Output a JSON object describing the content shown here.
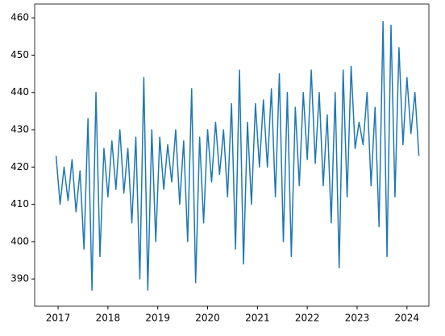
{
  "chart_data": {
    "type": "line",
    "x": [
      2016.96,
      2017.04,
      2017.12,
      2017.2,
      2017.28,
      2017.36,
      2017.44,
      2017.52,
      2017.6,
      2017.68,
      2017.76,
      2017.84,
      2017.92,
      2018.0,
      2018.08,
      2018.16,
      2018.24,
      2018.32,
      2018.4,
      2018.48,
      2018.56,
      2018.64,
      2018.72,
      2018.8,
      2018.88,
      2018.96,
      2019.04,
      2019.12,
      2019.2,
      2019.28,
      2019.36,
      2019.44,
      2019.52,
      2019.6,
      2019.68,
      2019.76,
      2019.84,
      2019.92,
      2020.0,
      2020.08,
      2020.16,
      2020.24,
      2020.32,
      2020.4,
      2020.48,
      2020.56,
      2020.64,
      2020.72,
      2020.8,
      2020.88,
      2020.96,
      2021.04,
      2021.12,
      2021.2,
      2021.28,
      2021.36,
      2021.44,
      2021.52,
      2021.6,
      2021.68,
      2021.76,
      2021.84,
      2021.92,
      2022.0,
      2022.08,
      2022.16,
      2022.24,
      2022.32,
      2022.4,
      2022.48,
      2022.56,
      2022.64,
      2022.72,
      2022.8,
      2022.88,
      2022.96,
      2023.04,
      2023.12,
      2023.2,
      2023.28,
      2023.36,
      2023.44,
      2023.52,
      2023.6,
      2023.68,
      2023.76,
      2023.84,
      2023.92,
      2024.0,
      2024.08,
      2024.16,
      2024.24
    ],
    "series": [
      {
        "color": "#1f77b4",
        "values": [
          423,
          410,
          420,
          411,
          422,
          408,
          419,
          398,
          433,
          387,
          440,
          396,
          425,
          412,
          427,
          414,
          430,
          413,
          425,
          405,
          428,
          390,
          444,
          387,
          430,
          400,
          428,
          414,
          426,
          416,
          430,
          410,
          427,
          400,
          441,
          389,
          428,
          405,
          430,
          416,
          432,
          418,
          430,
          412,
          437,
          398,
          446,
          394,
          432,
          410,
          437,
          420,
          438,
          420,
          441,
          412,
          445,
          400,
          440,
          396,
          436,
          415,
          440,
          422,
          446,
          421,
          440,
          415,
          434,
          405,
          440,
          393,
          446,
          412,
          447,
          425,
          432,
          426,
          440,
          415,
          436,
          404,
          459,
          396,
          458,
          412,
          452,
          426,
          444,
          429,
          440,
          423
        ]
      }
    ],
    "xlim": [
      2016.53,
      2024.44
    ],
    "xticks": [
      2017,
      2018,
      2019,
      2020,
      2021,
      2022,
      2023,
      2024
    ],
    "ylim": [
      382.7,
      463.7
    ],
    "yticks": [
      390,
      400,
      410,
      420,
      430,
      440,
      450,
      460
    ]
  }
}
